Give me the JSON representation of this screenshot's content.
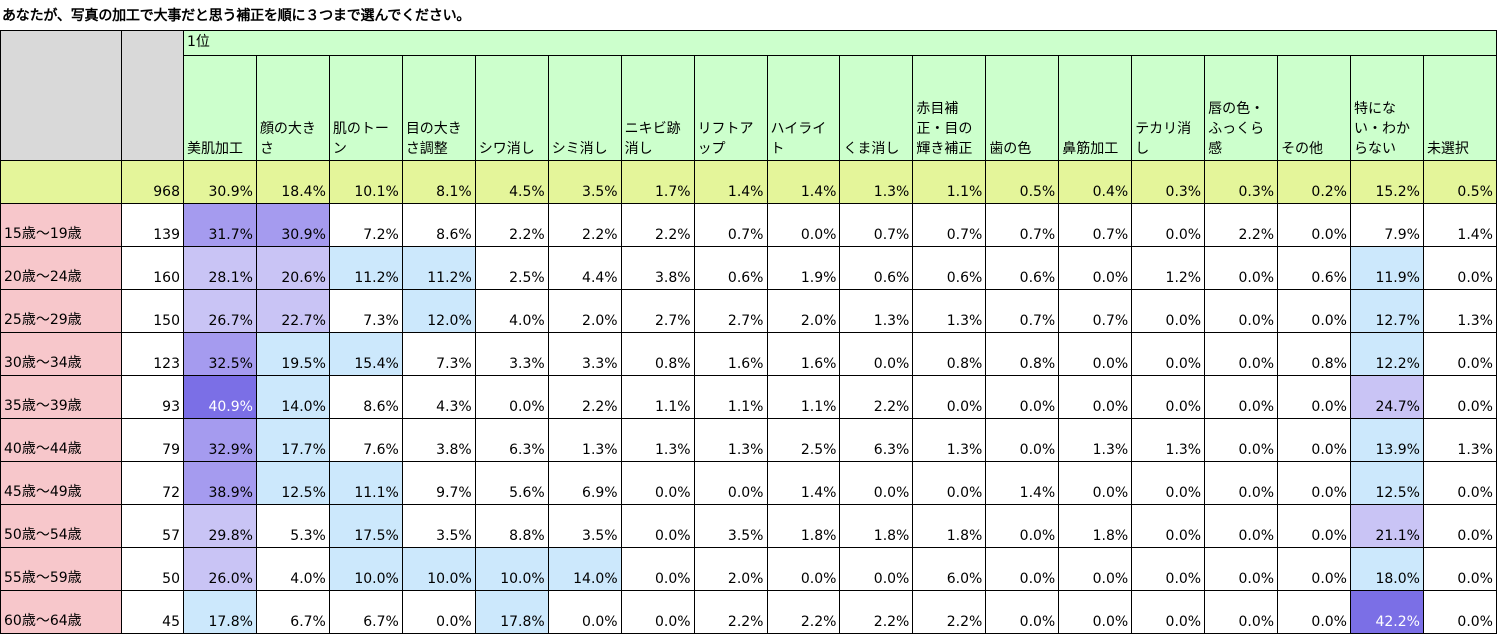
{
  "title": "あなたが、写真の加工で大事だと思う補正を順に３つまで選んでください。",
  "rank_label": "1位",
  "columns": [
    "美肌加工",
    "顔の大きさ",
    "肌のトーン",
    "目の大きさ調整",
    "シワ消し",
    "シミ消し",
    "ニキビ跡消し",
    "リフトアップ",
    "ハイライト",
    "くま消し",
    "赤目補正・目の輝き補正",
    "歯の色",
    "鼻筋加工",
    "テカリ消し",
    "唇の色・ふっくら感",
    "その他",
    "特にない・わからない",
    "未選択"
  ],
  "total": {
    "n": "968",
    "values": [
      "30.9%",
      "18.4%",
      "10.1%",
      "8.1%",
      "4.5%",
      "3.5%",
      "1.7%",
      "1.4%",
      "1.4%",
      "1.3%",
      "1.1%",
      "0.5%",
      "0.4%",
      "0.3%",
      "0.3%",
      "0.2%",
      "15.2%",
      "0.5%"
    ]
  },
  "rows": [
    {
      "label": "15歳～19歳",
      "n": "139",
      "values": [
        "31.7%",
        "30.9%",
        "7.2%",
        "8.6%",
        "2.2%",
        "2.2%",
        "2.2%",
        "0.7%",
        "0.0%",
        "0.7%",
        "0.7%",
        "0.7%",
        "0.7%",
        "0.0%",
        "2.2%",
        "0.0%",
        "7.9%",
        "1.4%"
      ]
    },
    {
      "label": "20歳～24歳",
      "n": "160",
      "values": [
        "28.1%",
        "20.6%",
        "11.2%",
        "11.2%",
        "2.5%",
        "4.4%",
        "3.8%",
        "0.6%",
        "1.9%",
        "0.6%",
        "0.6%",
        "0.6%",
        "0.0%",
        "1.2%",
        "0.0%",
        "0.6%",
        "11.9%",
        "0.0%"
      ]
    },
    {
      "label": "25歳～29歳",
      "n": "150",
      "values": [
        "26.7%",
        "22.7%",
        "7.3%",
        "12.0%",
        "4.0%",
        "2.0%",
        "2.7%",
        "2.7%",
        "2.0%",
        "1.3%",
        "1.3%",
        "0.7%",
        "0.7%",
        "0.0%",
        "0.0%",
        "0.0%",
        "12.7%",
        "1.3%"
      ]
    },
    {
      "label": "30歳～34歳",
      "n": "123",
      "values": [
        "32.5%",
        "19.5%",
        "15.4%",
        "7.3%",
        "3.3%",
        "3.3%",
        "0.8%",
        "1.6%",
        "1.6%",
        "0.0%",
        "0.8%",
        "0.8%",
        "0.0%",
        "0.0%",
        "0.0%",
        "0.8%",
        "12.2%",
        "0.0%"
      ]
    },
    {
      "label": "35歳～39歳",
      "n": "93",
      "values": [
        "40.9%",
        "14.0%",
        "8.6%",
        "4.3%",
        "0.0%",
        "2.2%",
        "1.1%",
        "1.1%",
        "1.1%",
        "2.2%",
        "0.0%",
        "0.0%",
        "0.0%",
        "0.0%",
        "0.0%",
        "0.0%",
        "24.7%",
        "0.0%"
      ]
    },
    {
      "label": "40歳～44歳",
      "n": "79",
      "values": [
        "32.9%",
        "17.7%",
        "7.6%",
        "3.8%",
        "6.3%",
        "1.3%",
        "1.3%",
        "1.3%",
        "2.5%",
        "6.3%",
        "1.3%",
        "0.0%",
        "1.3%",
        "1.3%",
        "0.0%",
        "0.0%",
        "13.9%",
        "1.3%"
      ]
    },
    {
      "label": "45歳～49歳",
      "n": "72",
      "values": [
        "38.9%",
        "12.5%",
        "11.1%",
        "9.7%",
        "5.6%",
        "6.9%",
        "0.0%",
        "0.0%",
        "1.4%",
        "0.0%",
        "0.0%",
        "1.4%",
        "0.0%",
        "0.0%",
        "0.0%",
        "0.0%",
        "12.5%",
        "0.0%"
      ]
    },
    {
      "label": "50歳～54歳",
      "n": "57",
      "values": [
        "29.8%",
        "5.3%",
        "17.5%",
        "3.5%",
        "8.8%",
        "3.5%",
        "0.0%",
        "3.5%",
        "1.8%",
        "1.8%",
        "1.8%",
        "0.0%",
        "1.8%",
        "0.0%",
        "0.0%",
        "0.0%",
        "21.1%",
        "0.0%"
      ]
    },
    {
      "label": "55歳～59歳",
      "n": "50",
      "values": [
        "26.0%",
        "4.0%",
        "10.0%",
        "10.0%",
        "10.0%",
        "14.0%",
        "0.0%",
        "2.0%",
        "0.0%",
        "0.0%",
        "6.0%",
        "0.0%",
        "0.0%",
        "0.0%",
        "0.0%",
        "0.0%",
        "18.0%",
        "0.0%"
      ]
    },
    {
      "label": "60歳～64歳",
      "n": "45",
      "values": [
        "17.8%",
        "6.7%",
        "6.7%",
        "0.0%",
        "17.8%",
        "0.0%",
        "0.0%",
        "2.2%",
        "2.2%",
        "2.2%",
        "2.2%",
        "0.0%",
        "0.0%",
        "0.0%",
        "0.0%",
        "0.0%",
        "42.2%",
        "0.0%"
      ]
    }
  ],
  "colors": {
    "header_bg": "#ccffcc",
    "corner_bg": "#d9d9d9",
    "total_row_bg": "#e4f59a",
    "age_label_bg": "#f7c7cb",
    "heat_light_blue": "#cce8fc",
    "heat_lavender": "#c9c4f5",
    "heat_medium_purple": "#a59bef",
    "heat_dark_purple": "#7b6fe6"
  }
}
